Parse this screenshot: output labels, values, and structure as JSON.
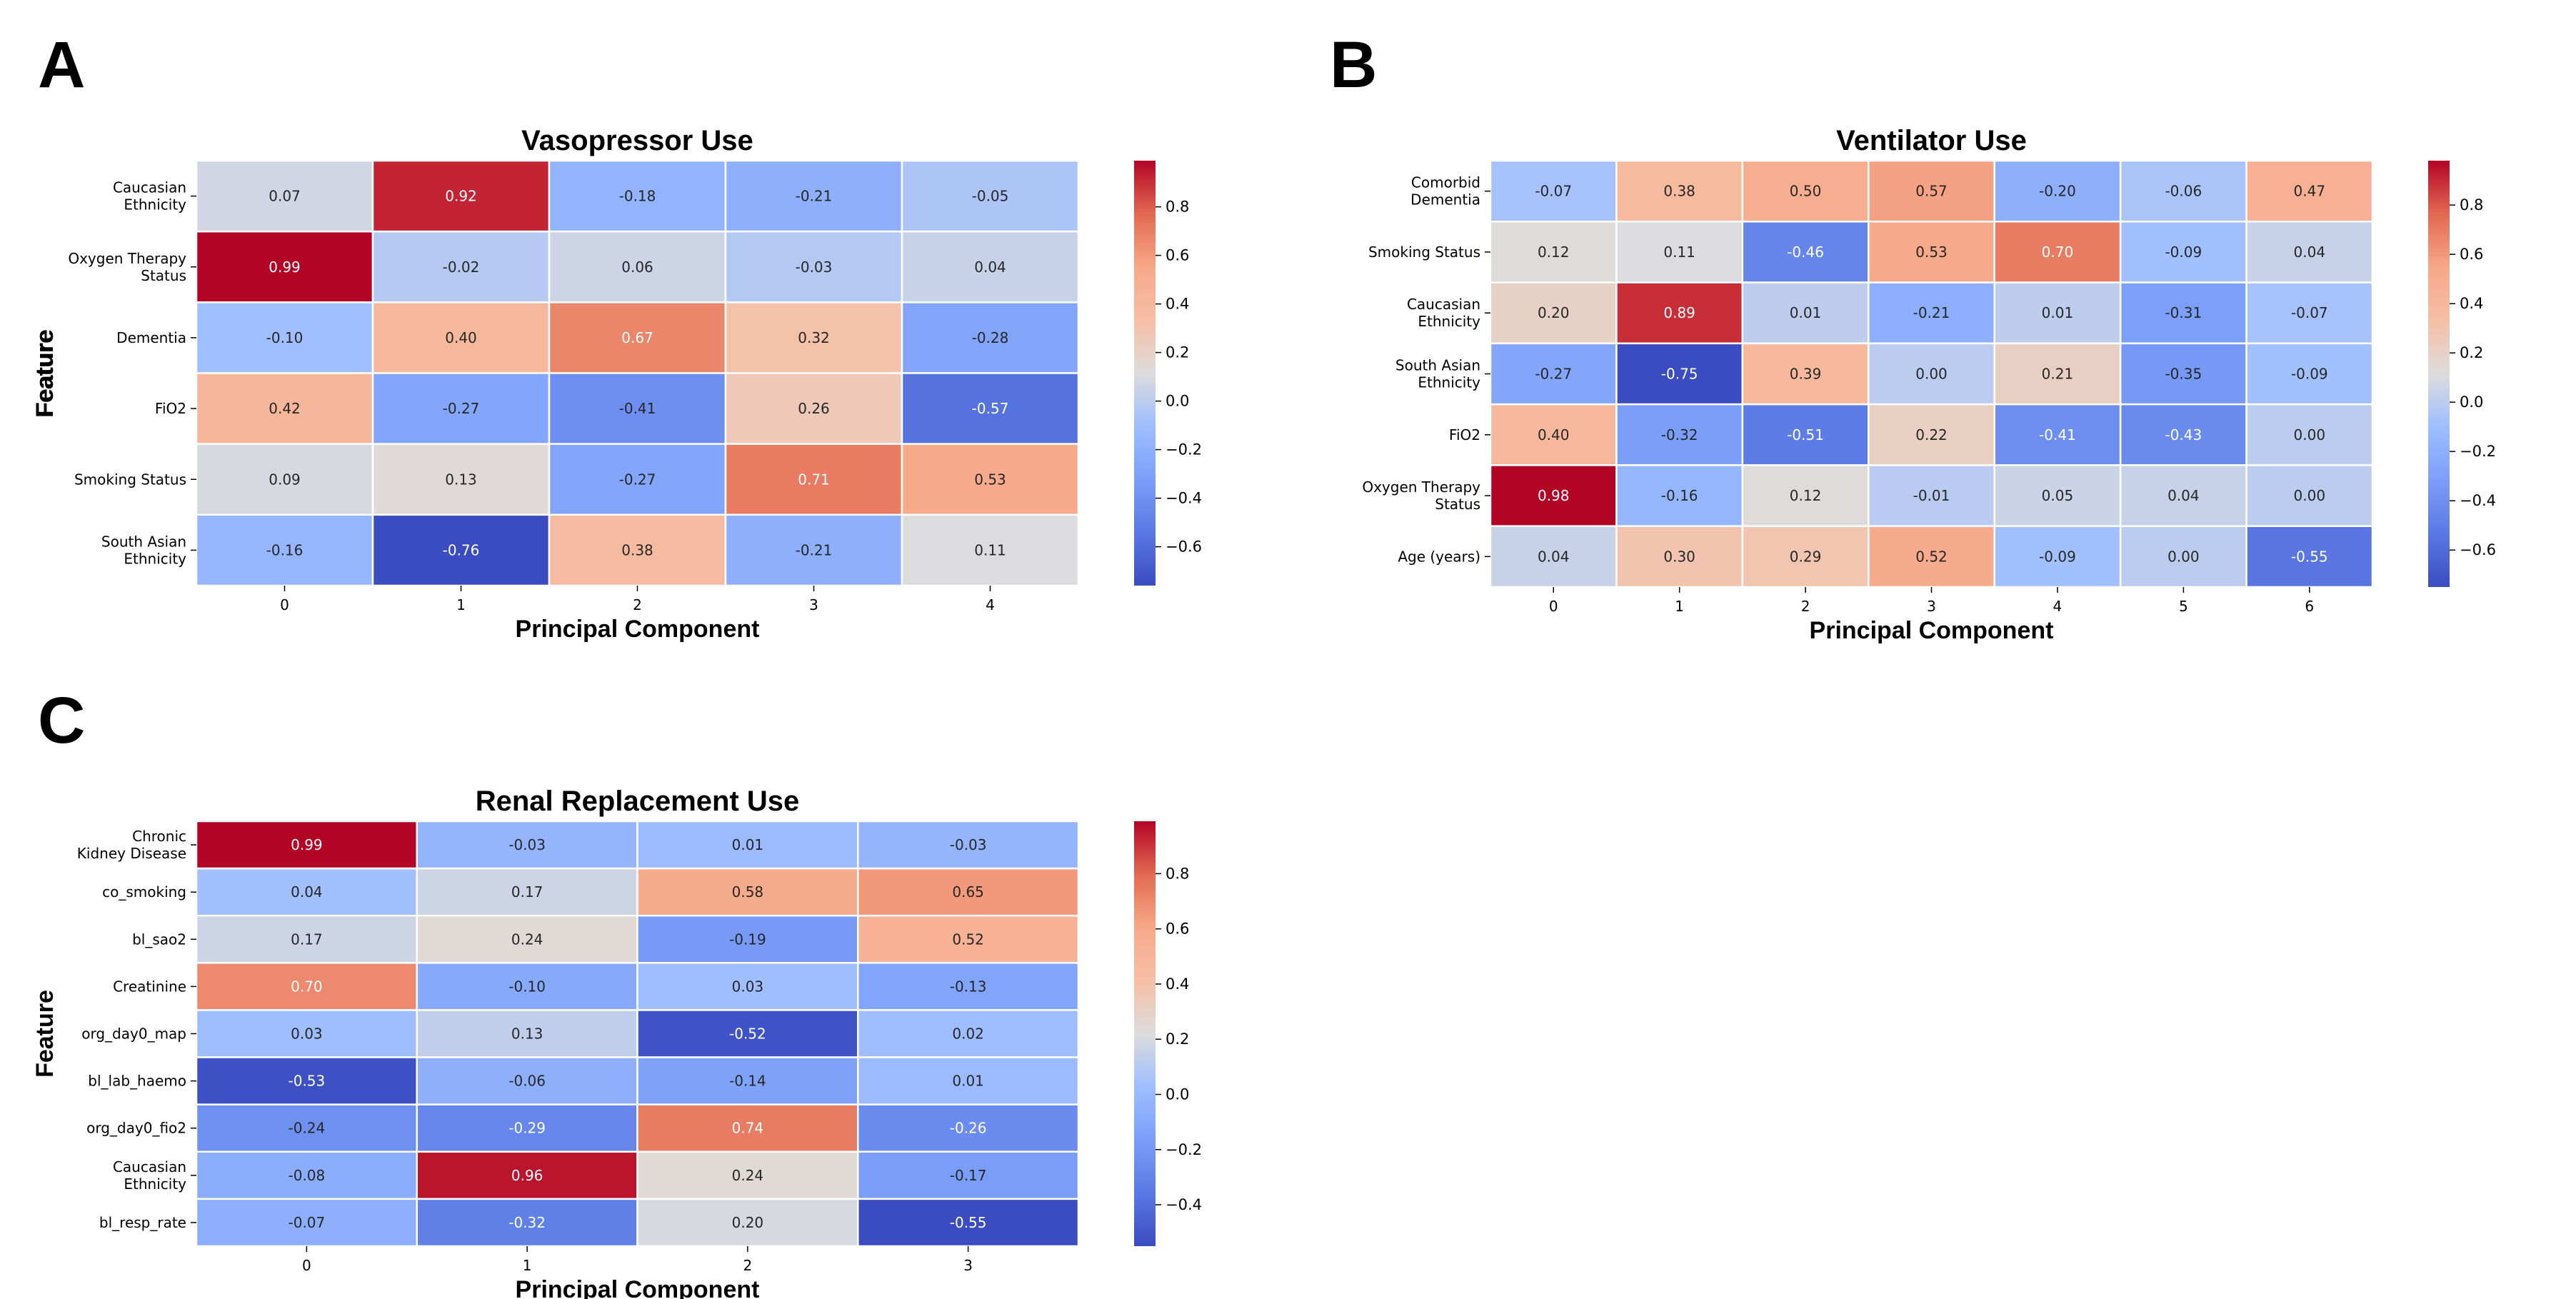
{
  "figure": {
    "panel_letters": [
      "A",
      "B",
      "C"
    ]
  },
  "chart_data": [
    {
      "type": "heatmap",
      "panel": "A",
      "title": "Vasopressor Use",
      "xlabel": "Principal Component",
      "ylabel": "Feature",
      "x": [
        "0",
        "1",
        "2",
        "3",
        "4"
      ],
      "y": [
        [
          "Caucasian",
          "Ethnicity"
        ],
        [
          "Oxygen Therapy",
          "Status"
        ],
        [
          "Dementia"
        ],
        [
          "FiO2"
        ],
        [
          "Smoking Status"
        ],
        [
          "South Asian",
          "Ethnicity"
        ]
      ],
      "values": [
        [
          0.07,
          0.92,
          -0.18,
          -0.21,
          -0.05
        ],
        [
          0.99,
          -0.02,
          0.06,
          -0.03,
          0.04
        ],
        [
          -0.1,
          0.4,
          0.67,
          0.32,
          -0.28
        ],
        [
          0.42,
          -0.27,
          -0.41,
          0.26,
          -0.57
        ],
        [
          0.09,
          0.13,
          -0.27,
          0.71,
          0.53
        ],
        [
          -0.16,
          -0.76,
          0.38,
          -0.21,
          0.11
        ]
      ],
      "colormap": "coolwarm",
      "vmin": -0.76,
      "vmax": 0.99,
      "colorbar_ticks": [
        0.8,
        0.6,
        0.4,
        0.2,
        0.0,
        -0.2,
        -0.4,
        -0.6
      ]
    },
    {
      "type": "heatmap",
      "panel": "B",
      "title": "Ventilator Use",
      "xlabel": "Principal Component",
      "ylabel": "Feature",
      "x": [
        "0",
        "1",
        "2",
        "3",
        "4",
        "5",
        "6"
      ],
      "y": [
        [
          "Comorbid",
          "Dementia"
        ],
        [
          "Smoking Status"
        ],
        [
          "Caucasian",
          "Ethnicity"
        ],
        [
          "South Asian",
          "Ethnicity"
        ],
        [
          "FiO2"
        ],
        [
          "Oxygen Therapy",
          "Status"
        ],
        [
          "Age (years)"
        ]
      ],
      "values": [
        [
          -0.07,
          0.38,
          0.5,
          0.57,
          -0.2,
          -0.06,
          0.47
        ],
        [
          0.12,
          0.11,
          -0.46,
          0.53,
          0.7,
          -0.09,
          0.04
        ],
        [
          0.2,
          0.89,
          0.01,
          -0.21,
          0.01,
          -0.31,
          -0.07
        ],
        [
          -0.27,
          -0.75,
          0.39,
          0.0,
          0.21,
          -0.35,
          -0.09
        ],
        [
          0.4,
          -0.32,
          -0.51,
          0.22,
          -0.41,
          -0.43,
          0.0
        ],
        [
          0.98,
          -0.16,
          0.12,
          -0.01,
          0.05,
          0.04,
          -0.0
        ],
        [
          0.04,
          0.3,
          0.29,
          0.52,
          -0.09,
          -0.0,
          -0.55
        ]
      ],
      "colormap": "coolwarm",
      "vmin": -0.75,
      "vmax": 0.98,
      "colorbar_ticks": [
        0.8,
        0.6,
        0.4,
        0.2,
        0.0,
        -0.2,
        -0.4,
        -0.6
      ]
    },
    {
      "type": "heatmap",
      "panel": "C",
      "title": "Renal Replacement Use",
      "xlabel": "Principal Component",
      "ylabel": "Feature",
      "x": [
        "0",
        "1",
        "2",
        "3"
      ],
      "y": [
        [
          "Chronic",
          "Kidney Disease"
        ],
        [
          "co_smoking"
        ],
        [
          "bl_sao2"
        ],
        [
          "Creatinine"
        ],
        [
          "org_day0_map"
        ],
        [
          "bl_lab_haemo"
        ],
        [
          "org_day0_fio2"
        ],
        [
          "Caucasian",
          "Ethnicity"
        ],
        [
          "bl_resp_rate"
        ]
      ],
      "values": [
        [
          0.99,
          -0.03,
          0.01,
          -0.03
        ],
        [
          0.04,
          0.17,
          0.58,
          0.65
        ],
        [
          0.17,
          0.24,
          -0.19,
          0.52
        ],
        [
          0.7,
          -0.1,
          0.03,
          -0.13
        ],
        [
          0.03,
          0.13,
          -0.52,
          0.02
        ],
        [
          -0.53,
          -0.06,
          -0.14,
          0.01
        ],
        [
          -0.24,
          -0.29,
          0.74,
          -0.26
        ],
        [
          -0.08,
          0.96,
          0.24,
          -0.17
        ],
        [
          -0.07,
          -0.32,
          0.2,
          -0.55
        ]
      ],
      "colormap": "coolwarm",
      "vmin": -0.55,
      "vmax": 0.99,
      "colorbar_ticks": [
        0.8,
        0.6,
        0.4,
        0.2,
        0.0,
        -0.2,
        -0.4
      ]
    }
  ]
}
